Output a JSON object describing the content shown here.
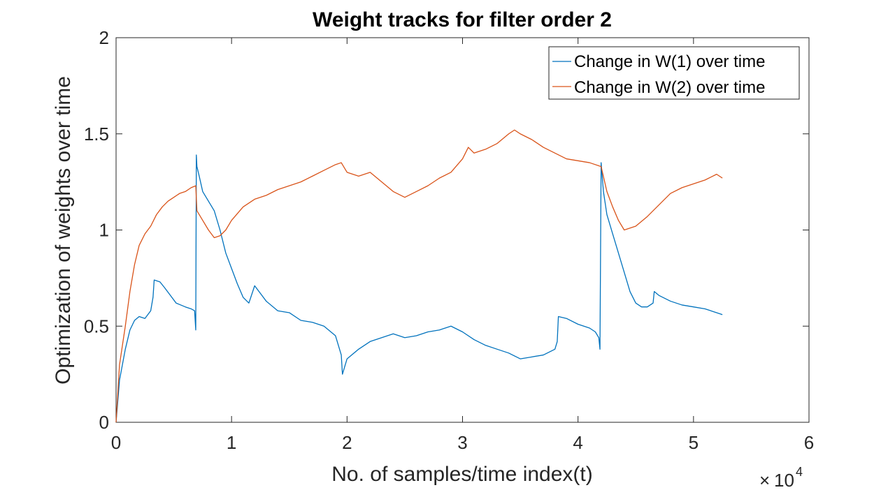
{
  "chart_data": {
    "type": "line",
    "title": "Weight tracks for filter order 2",
    "xlabel": "No. of samples/time index(t)",
    "ylabel": "Optimization of weights over time",
    "x_multiplier_base": "10",
    "x_multiplier_exponent": "4",
    "xlim": [
      0,
      6
    ],
    "ylim": [
      0,
      2
    ],
    "x_ticks": [
      "0",
      "1",
      "2",
      "3",
      "4",
      "5",
      "6"
    ],
    "y_ticks": [
      "0",
      "0.5",
      "1",
      "1.5",
      "2"
    ],
    "grid": false,
    "legend_position": "top-right",
    "series": [
      {
        "name": "Change in W(1) over time",
        "color": "#0072BD",
        "x": [
          0,
          0.03,
          0.08,
          0.12,
          0.16,
          0.2,
          0.25,
          0.3,
          0.32,
          0.33,
          0.38,
          0.42,
          0.47,
          0.52,
          0.56,
          0.6,
          0.65,
          0.68,
          0.69,
          0.695,
          0.7,
          0.72,
          0.75,
          0.8,
          0.85,
          0.9,
          0.95,
          1.0,
          1.05,
          1.1,
          1.15,
          1.2,
          1.25,
          1.3,
          1.4,
          1.5,
          1.6,
          1.7,
          1.8,
          1.9,
          1.95,
          1.96,
          2.0,
          2.1,
          2.2,
          2.3,
          2.4,
          2.5,
          2.6,
          2.7,
          2.8,
          2.9,
          3.0,
          3.1,
          3.2,
          3.3,
          3.4,
          3.5,
          3.6,
          3.7,
          3.8,
          3.82,
          3.83,
          3.9,
          4.0,
          4.1,
          4.15,
          4.18,
          4.19,
          4.2,
          4.22,
          4.25,
          4.3,
          4.35,
          4.4,
          4.45,
          4.5,
          4.55,
          4.6,
          4.65,
          4.66,
          4.7,
          4.8,
          4.9,
          5.0,
          5.1,
          5.2,
          5.25
        ],
        "y": [
          0,
          0.22,
          0.38,
          0.48,
          0.53,
          0.55,
          0.54,
          0.58,
          0.65,
          0.74,
          0.73,
          0.7,
          0.66,
          0.62,
          0.61,
          0.6,
          0.59,
          0.58,
          0.48,
          1.39,
          1.33,
          1.28,
          1.2,
          1.15,
          1.1,
          1.0,
          0.88,
          0.8,
          0.72,
          0.65,
          0.62,
          0.71,
          0.67,
          0.63,
          0.58,
          0.57,
          0.53,
          0.52,
          0.5,
          0.45,
          0.35,
          0.25,
          0.33,
          0.38,
          0.42,
          0.44,
          0.46,
          0.44,
          0.45,
          0.47,
          0.48,
          0.5,
          0.47,
          0.43,
          0.4,
          0.38,
          0.36,
          0.33,
          0.34,
          0.35,
          0.38,
          0.42,
          0.55,
          0.54,
          0.51,
          0.49,
          0.47,
          0.44,
          0.38,
          1.35,
          1.2,
          1.08,
          0.98,
          0.88,
          0.78,
          0.68,
          0.62,
          0.6,
          0.6,
          0.62,
          0.68,
          0.66,
          0.63,
          0.61,
          0.6,
          0.59,
          0.57,
          0.56
        ]
      },
      {
        "name": "Change in W(2) over time",
        "color": "#D95319",
        "x": [
          0,
          0.03,
          0.08,
          0.12,
          0.16,
          0.2,
          0.25,
          0.3,
          0.35,
          0.4,
          0.45,
          0.5,
          0.55,
          0.6,
          0.65,
          0.69,
          0.7,
          0.75,
          0.8,
          0.85,
          0.9,
          0.95,
          1.0,
          1.1,
          1.2,
          1.3,
          1.4,
          1.5,
          1.6,
          1.7,
          1.8,
          1.9,
          1.95,
          2.0,
          2.1,
          2.2,
          2.3,
          2.4,
          2.5,
          2.6,
          2.7,
          2.8,
          2.9,
          3.0,
          3.05,
          3.1,
          3.2,
          3.3,
          3.4,
          3.45,
          3.5,
          3.6,
          3.7,
          3.8,
          3.9,
          4.0,
          4.1,
          4.2,
          4.25,
          4.3,
          4.35,
          4.4,
          4.5,
          4.6,
          4.7,
          4.8,
          4.9,
          5.0,
          5.1,
          5.2,
          5.25
        ],
        "y": [
          0,
          0.3,
          0.5,
          0.68,
          0.82,
          0.92,
          0.98,
          1.02,
          1.08,
          1.12,
          1.15,
          1.17,
          1.19,
          1.2,
          1.22,
          1.23,
          1.1,
          1.05,
          1.0,
          0.96,
          0.97,
          1.0,
          1.05,
          1.12,
          1.16,
          1.18,
          1.21,
          1.23,
          1.25,
          1.28,
          1.31,
          1.34,
          1.35,
          1.3,
          1.28,
          1.3,
          1.25,
          1.2,
          1.17,
          1.2,
          1.23,
          1.27,
          1.3,
          1.37,
          1.43,
          1.4,
          1.42,
          1.45,
          1.5,
          1.52,
          1.5,
          1.47,
          1.43,
          1.4,
          1.37,
          1.36,
          1.35,
          1.33,
          1.2,
          1.12,
          1.05,
          1.0,
          1.02,
          1.07,
          1.13,
          1.19,
          1.22,
          1.24,
          1.26,
          1.29,
          1.27
        ]
      }
    ]
  }
}
